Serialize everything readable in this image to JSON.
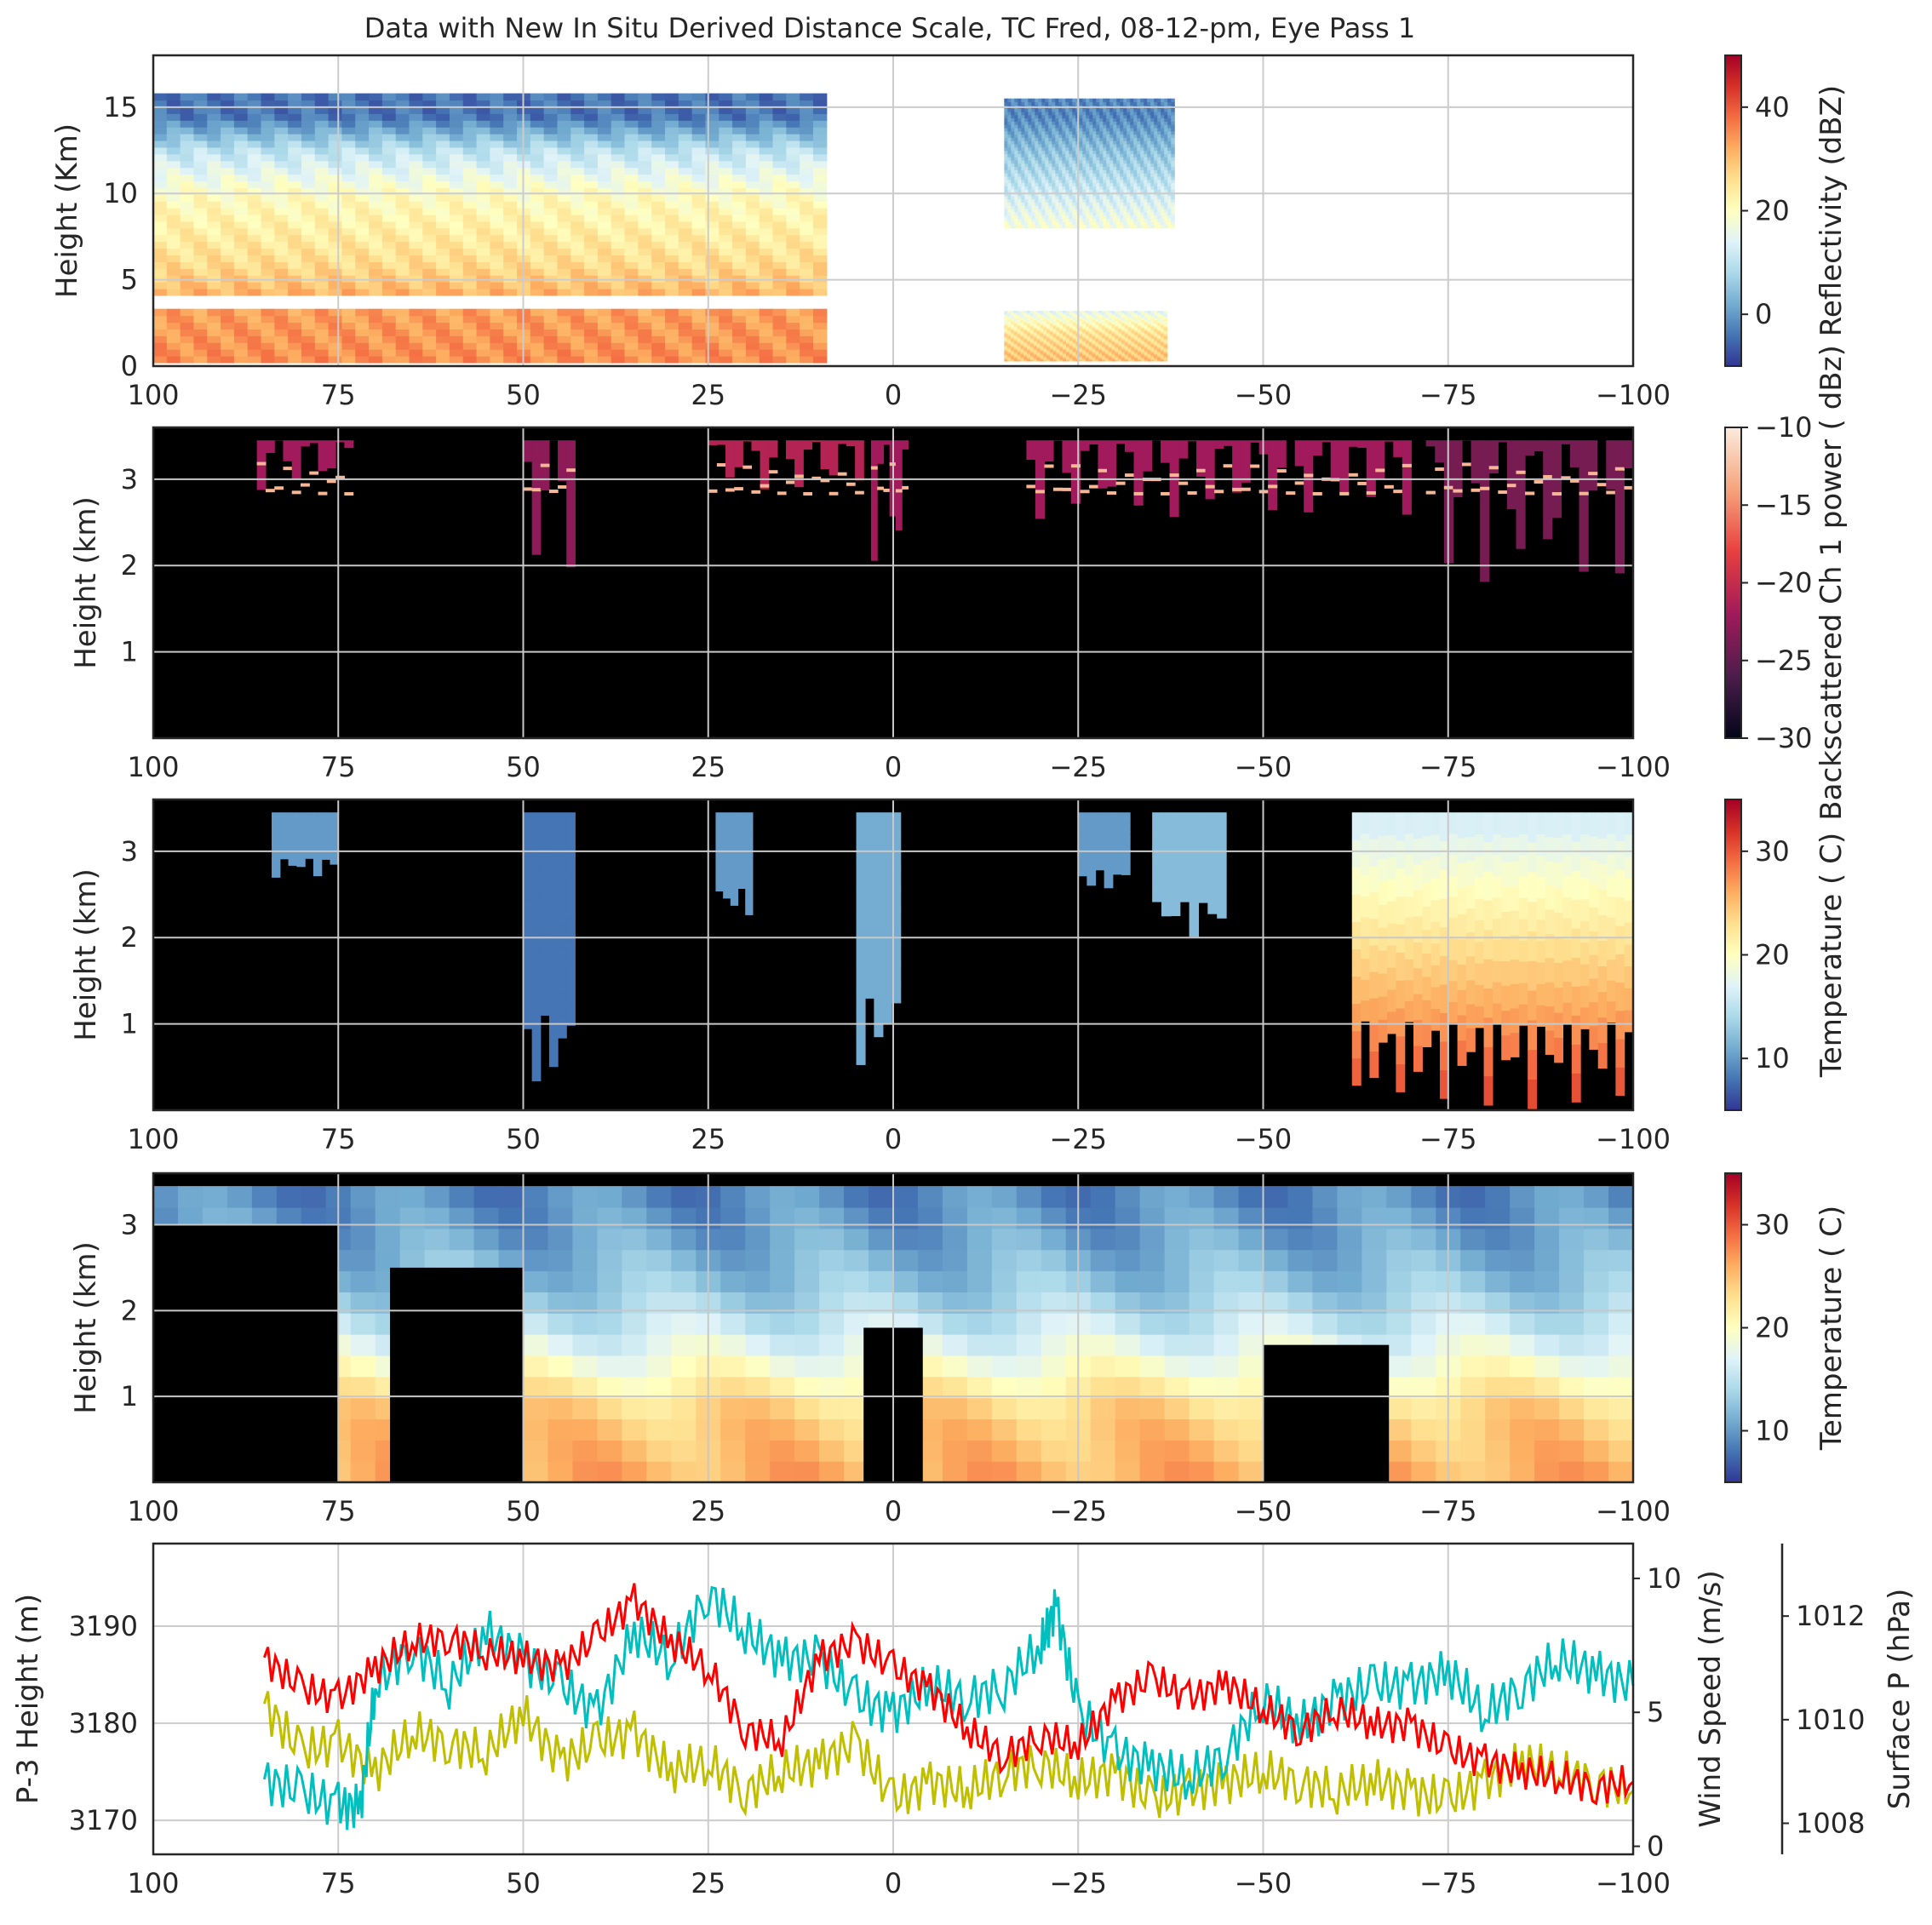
{
  "figure_title": "Data with New In Situ Derived Distance Scale, TC Fred, 08-12-pm, Eye Pass 1",
  "chart_data": [
    {
      "type": "heatmap",
      "panel": "reflectivity",
      "xlabel": "",
      "ylabel": "Height (Km)",
      "xlim": [
        100,
        -100
      ],
      "ylim": [
        0,
        18
      ],
      "xticks": [
        "100",
        "75",
        "50",
        "25",
        "0",
        "−25",
        "−50",
        "−75",
        "−100"
      ],
      "yticks": [
        "0",
        "5",
        "10",
        "15"
      ],
      "grid": true,
      "colorbar": {
        "label": "Reflectivity (dBZ)",
        "range": [
          -10,
          50
        ],
        "ticks": [
          "0",
          "20",
          "40"
        ],
        "colormap": "RdYlBu_r"
      },
      "regions": [
        {
          "x": [
            100,
            9
          ],
          "y": [
            0.2,
            15.8
          ],
          "profile": [
            [
              0.3,
              35
            ],
            [
              3.7,
              33
            ],
            [
              4.6,
              30
            ],
            [
              6,
              26
            ],
            [
              10,
              20
            ],
            [
              12.5,
              10
            ],
            [
              14.5,
              -4
            ]
          ]
        },
        {
          "x": [
            -15,
            -38
          ],
          "y": [
            8,
            15.5
          ],
          "profile": [
            [
              8,
              18
            ],
            [
              10,
              12
            ],
            [
              12.5,
              5
            ],
            [
              14.5,
              -2
            ]
          ]
        },
        {
          "x": [
            -15,
            -37
          ],
          "y": [
            0.3,
            3.2
          ],
          "profile": [
            [
              0.3,
              30
            ],
            [
              2,
              25
            ],
            [
              3.2,
              15
            ]
          ]
        }
      ]
    },
    {
      "type": "heatmap",
      "panel": "backscatter",
      "xlabel": "",
      "ylabel": "Height (km)",
      "xlim": [
        100,
        -100
      ],
      "ylim": [
        0,
        3.6
      ],
      "xticks": [
        "100",
        "75",
        "50",
        "25",
        "0",
        "−25",
        "−50",
        "−75",
        "−100"
      ],
      "yticks": [
        "1",
        "2",
        "3"
      ],
      "grid": true,
      "colorbar": {
        "label": "Backscattered Ch 1 power ( dBz)",
        "range": [
          -30,
          -10
        ],
        "ticks": [
          "−30",
          "−25",
          "−20",
          "−15",
          "−10"
        ],
        "colormap": "rocket"
      },
      "cloud_regions": [
        {
          "x": [
            86,
            73
          ],
          "top": 3.45,
          "bottom": 2.3,
          "value": -22
        },
        {
          "x": [
            50,
            43
          ],
          "top": 3.45,
          "bottom": 0.3,
          "value": -23
        },
        {
          "x": [
            25,
            4
          ],
          "top": 3.45,
          "bottom": 2.2,
          "value": -21
        },
        {
          "x": [
            3,
            -2
          ],
          "top": 3.45,
          "bottom": 0.2,
          "value": -22
        },
        {
          "x": [
            -18,
            -70
          ],
          "top": 3.45,
          "bottom": 1.6,
          "value": -22
        },
        {
          "x": [
            -72,
            -100
          ],
          "top": 3.45,
          "bottom": 0.0,
          "value": -24
        }
      ]
    },
    {
      "type": "heatmap",
      "panel": "temperature_upper",
      "xlabel": "",
      "ylabel": "Height (km)",
      "xlim": [
        100,
        -100
      ],
      "ylim": [
        0,
        3.6
      ],
      "xticks": [
        "100",
        "75",
        "50",
        "25",
        "0",
        "−25",
        "−50",
        "−75",
        "−100"
      ],
      "yticks": [
        "1",
        "2",
        "3"
      ],
      "grid": true,
      "colorbar": {
        "label": "Temperature ( C)",
        "range": [
          5,
          35
        ],
        "ticks": [
          "10",
          "20",
          "30"
        ],
        "colormap": "RdYlBu_r"
      },
      "regions": [
        {
          "x": [
            84,
            75
          ],
          "top": 3.45,
          "bottom": 2.7,
          "value": 10
        },
        {
          "x": [
            50,
            43
          ],
          "top": 3.45,
          "bottom": 0.1,
          "value": 8
        },
        {
          "x": [
            24,
            19
          ],
          "top": 3.45,
          "bottom": 2.2,
          "value": 10
        },
        {
          "x": [
            5,
            -1
          ],
          "top": 3.45,
          "bottom": 0.4,
          "value": 11
        },
        {
          "x": [
            -25,
            -32
          ],
          "top": 3.45,
          "bottom": 2.5,
          "value": 10
        },
        {
          "x": [
            -35,
            -45
          ],
          "top": 3.45,
          "bottom": 2.0,
          "value": 12
        },
        {
          "x": [
            -62,
            -100
          ],
          "top": 3.45,
          "bottom": 0.0,
          "value": 18
        }
      ]
    },
    {
      "type": "heatmap",
      "panel": "temperature_lower",
      "xlabel": "",
      "ylabel": "Height (km)",
      "xlim": [
        100,
        -100
      ],
      "ylim": [
        0,
        3.6
      ],
      "xticks": [
        "100",
        "75",
        "50",
        "25",
        "0",
        "−25",
        "−50",
        "−75",
        "−100"
      ],
      "yticks": [
        "1",
        "2",
        "3"
      ],
      "grid": true,
      "colorbar": {
        "label": "Temperature ( C)",
        "range": [
          5,
          35
        ],
        "ticks": [
          "10",
          "20",
          "30"
        ],
        "colormap": "RdYlBu_r"
      },
      "profile": [
        [
          0.0,
          26
        ],
        [
          0.8,
          24
        ],
        [
          1.5,
          18
        ],
        [
          2.2,
          13
        ],
        [
          3.0,
          10
        ],
        [
          3.45,
          9
        ]
      ],
      "masks": [
        {
          "x": [
            100,
            75
          ],
          "top": 3.0
        },
        {
          "x": [
            68,
            50
          ],
          "top": 2.5
        },
        {
          "x": [
            4,
            -4
          ],
          "top": 1.8
        },
        {
          "x": [
            -50,
            -67
          ],
          "top": 1.6
        }
      ]
    },
    {
      "type": "line",
      "panel": "flight_level",
      "xlabel": "",
      "xlim": [
        100,
        -100
      ],
      "xticks": [
        "100",
        "75",
        "50",
        "25",
        "0",
        "−25",
        "−50",
        "−75",
        "−100"
      ],
      "grid": true,
      "axes": [
        {
          "side": "left",
          "label": "P-3 Height (m)",
          "color": "#bfbf00",
          "ylim": [
            3166.5,
            3198.5
          ],
          "yticks": [
            "3170",
            "3180",
            "3190"
          ]
        },
        {
          "side": "right",
          "label": "Wind Speed (m/s)",
          "color": "#00bfbf",
          "ylim": [
            -0.3,
            11.3
          ],
          "yticks": [
            "0",
            "5",
            "10"
          ]
        },
        {
          "side": "right-outer",
          "label": "Surface P (hPa)",
          "color": "#ff0000",
          "ylim": [
            1007.4,
            1013.4
          ],
          "yticks": [
            "1008",
            "1010",
            "1012"
          ]
        }
      ],
      "series": [
        {
          "name": "P-3 Height (m)",
          "axis": 0,
          "color": "#bfbf00",
          "x": [
            85,
            80,
            75,
            70,
            65,
            60,
            55,
            50,
            45,
            40,
            35,
            30,
            25,
            20,
            15,
            10,
            5,
            0,
            -5,
            -10,
            -15,
            -20,
            -25,
            -30,
            -35,
            -40,
            -45,
            -50,
            -55,
            -60,
            -65,
            -70,
            -75,
            -80,
            -85,
            -90,
            -95,
            -100
          ],
          "y": [
            3182,
            3177,
            3178,
            3175,
            3179,
            3178,
            3177,
            3181,
            3176,
            3178,
            3179,
            3175,
            3176,
            3173,
            3175,
            3176,
            3178,
            3172,
            3174,
            3173,
            3175,
            3176,
            3174,
            3175,
            3172,
            3173,
            3174,
            3175,
            3174,
            3173,
            3174,
            3173,
            3172,
            3174,
            3176,
            3175,
            3174,
            3173
          ]
        },
        {
          "name": "Wind Speed (m/s)",
          "axis": 1,
          "color": "#00bfbf",
          "x": [
            85,
            80,
            75,
            72,
            70,
            65,
            60,
            55,
            50,
            45,
            40,
            35,
            30,
            25,
            20,
            15,
            10,
            5,
            0,
            -5,
            -10,
            -15,
            -20,
            -22,
            -25,
            -30,
            -35,
            -40,
            -45,
            -50,
            -55,
            -60,
            -65,
            -70,
            -75,
            -80,
            -85,
            -90,
            -95,
            -100
          ],
          "y": [
            2.5,
            2,
            1.5,
            1.5,
            6,
            7.5,
            6,
            8,
            7,
            6,
            5,
            8,
            7,
            9.5,
            8,
            7,
            7,
            5.5,
            5,
            6,
            5.5,
            6,
            7.5,
            9,
            5,
            3.5,
            3,
            2.5,
            3.5,
            5.5,
            4.5,
            5.5,
            6,
            6,
            6.5,
            5,
            6,
            7,
            6.5,
            6
          ]
        },
        {
          "name": "Surface P (hPa)",
          "axis": 2,
          "color": "#ff0000",
          "x": [
            85,
            80,
            75,
            70,
            65,
            60,
            55,
            50,
            45,
            40,
            35,
            30,
            25,
            20,
            15,
            10,
            5,
            0,
            -5,
            -10,
            -15,
            -20,
            -25,
            -30,
            -35,
            -40,
            -45,
            -50,
            -55,
            -60,
            -65,
            -70,
            -75,
            -80,
            -85,
            -90,
            -95,
            -100
          ],
          "y": [
            1011.2,
            1010.6,
            1010.4,
            1011.0,
            1011.5,
            1011.6,
            1011.3,
            1011.2,
            1011.0,
            1011.6,
            1012.3,
            1011.5,
            1011.0,
            1009.8,
            1009.6,
            1011.2,
            1011.5,
            1011.0,
            1010.6,
            1009.8,
            1009.3,
            1009.7,
            1009.5,
            1010.4,
            1010.8,
            1010.4,
            1010.7,
            1010.2,
            1009.8,
            1010.2,
            1009.9,
            1009.9,
            1009.4,
            1009.2,
            1009.0,
            1008.9,
            1008.7,
            1008.8
          ]
        }
      ]
    }
  ]
}
